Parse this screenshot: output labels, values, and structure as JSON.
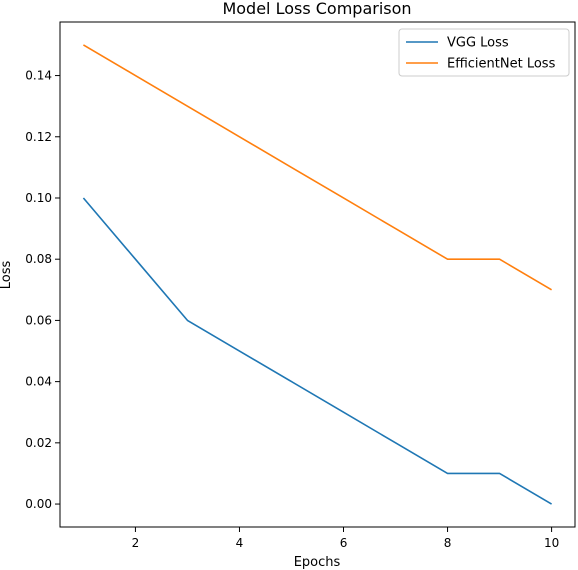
{
  "chart_data": {
    "type": "line",
    "title": "Model Loss Comparison",
    "xlabel": "Epochs",
    "ylabel": "Loss",
    "x": [
      1,
      2,
      3,
      4,
      5,
      6,
      7,
      8,
      9,
      10
    ],
    "series": [
      {
        "name": "VGG Loss",
        "color": "#1f77b4",
        "values": [
          0.1,
          0.08,
          0.06,
          0.05,
          0.04,
          0.03,
          0.02,
          0.01,
          0.01,
          0.0
        ]
      },
      {
        "name": "EfficientNet Loss",
        "color": "#ff7f0e",
        "values": [
          0.15,
          0.14,
          0.13,
          0.12,
          0.11,
          0.1,
          0.09,
          0.08,
          0.08,
          0.07
        ]
      }
    ],
    "xlim": [
      0.55,
      10.45
    ],
    "ylim": [
      -0.0075,
      0.1575
    ],
    "xticks": [
      2,
      4,
      6,
      8,
      10
    ],
    "xtick_labels": [
      "2",
      "4",
      "6",
      "8",
      "10"
    ],
    "yticks": [
      0.0,
      0.02,
      0.04,
      0.06,
      0.08,
      0.1,
      0.12,
      0.14
    ],
    "ytick_labels": [
      "0.00",
      "0.02",
      "0.04",
      "0.06",
      "0.08",
      "0.10",
      "0.12",
      "0.14"
    ],
    "grid": false,
    "legend_position": "top-right"
  }
}
